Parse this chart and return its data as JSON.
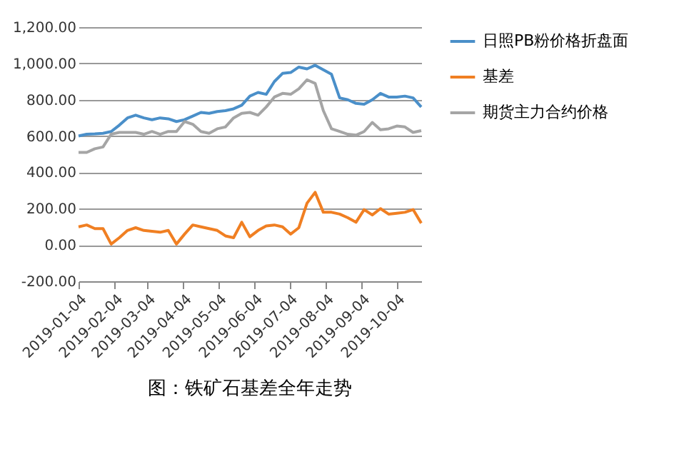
{
  "chart_data": {
    "type": "line",
    "title": "图：铁矿石基差全年走势",
    "x": [
      "2019-01-04",
      "2019-01-11",
      "2019-01-18",
      "2019-01-25",
      "2019-02-01",
      "2019-02-08",
      "2019-02-15",
      "2019-02-22",
      "2019-03-01",
      "2019-03-08",
      "2019-03-15",
      "2019-03-22",
      "2019-03-29",
      "2019-04-05",
      "2019-04-12",
      "2019-04-19",
      "2019-04-26",
      "2019-05-03",
      "2019-05-10",
      "2019-05-17",
      "2019-05-24",
      "2019-05-31",
      "2019-06-07",
      "2019-06-14",
      "2019-06-21",
      "2019-06-28",
      "2019-07-05",
      "2019-07-12",
      "2019-07-19",
      "2019-07-26",
      "2019-08-02",
      "2019-08-09",
      "2019-08-16",
      "2019-08-23",
      "2019-08-30",
      "2019-09-06",
      "2019-09-13",
      "2019-09-20",
      "2019-09-27",
      "2019-10-04",
      "2019-10-11",
      "2019-10-18",
      "2019-10-25"
    ],
    "series": [
      {
        "name": "日照PB粉价格折盘面",
        "color": "#4a8fc9",
        "values": [
          600,
          610,
          612,
          615,
          625,
          660,
          700,
          715,
          700,
          690,
          700,
          695,
          680,
          690,
          710,
          730,
          725,
          735,
          740,
          750,
          770,
          820,
          840,
          830,
          900,
          945,
          950,
          980,
          970,
          990,
          965,
          940,
          810,
          800,
          780,
          775,
          800,
          835,
          815,
          815,
          820,
          810,
          760
        ]
      },
      {
        "name": "基差",
        "color": "#f07f22",
        "values": [
          100,
          110,
          90,
          90,
          5,
          40,
          80,
          95,
          80,
          75,
          70,
          80,
          5,
          60,
          110,
          100,
          90,
          80,
          50,
          40,
          125,
          45,
          80,
          105,
          110,
          100,
          60,
          95,
          230,
          290,
          180,
          180,
          170,
          150,
          125,
          195,
          165,
          200,
          170,
          175,
          180,
          195,
          120
        ]
      },
      {
        "name": "期货主力合约价格",
        "color": "#a5a5a5",
        "values": [
          510,
          510,
          530,
          540,
          610,
          620,
          620,
          620,
          610,
          625,
          610,
          625,
          625,
          680,
          665,
          625,
          615,
          640,
          650,
          700,
          725,
          730,
          715,
          760,
          815,
          835,
          830,
          860,
          910,
          890,
          740,
          640,
          625,
          610,
          605,
          625,
          675,
          635,
          640,
          655,
          650,
          620,
          630
        ]
      }
    ],
    "xlim": [
      "2019-01-04",
      "2019-10-25"
    ],
    "xticks": [
      "2019-01-04",
      "2019-02-04",
      "2019-03-04",
      "2019-04-04",
      "2019-05-04",
      "2019-06-04",
      "2019-07-04",
      "2019-08-04",
      "2019-09-04",
      "2019-10-04"
    ],
    "ylim": [
      -200,
      1200
    ],
    "yticks": [
      {
        "value": -200,
        "label": "-200.00"
      },
      {
        "value": 0,
        "label": "0.00"
      },
      {
        "value": 200,
        "label": "200.00"
      },
      {
        "value": 400,
        "label": "400.00"
      },
      {
        "value": 600,
        "label": "600.00"
      },
      {
        "value": 800,
        "label": "800.00"
      },
      {
        "value": 1000,
        "label": "1,000.00"
      },
      {
        "value": 1200,
        "label": "1,200.00"
      }
    ],
    "grid": "y",
    "legend": "right",
    "marker": "none",
    "line_style": "solid"
  }
}
